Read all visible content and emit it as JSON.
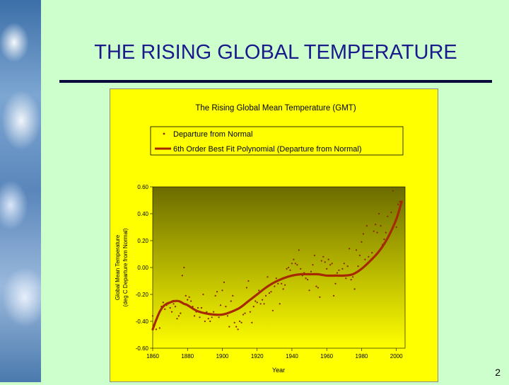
{
  "slide": {
    "title": "THE RISING GLOBAL TEMPERATURE",
    "page_number": "2",
    "colors": {
      "background": "#ccffcc",
      "title": "#1a1a8c",
      "chart_bg": "#ffff00"
    }
  },
  "chart_data": {
    "type": "scatter",
    "title": "The Rising Global Mean Temperature (GMT)",
    "xlabel": "Year",
    "ylabel": "Global Mean Temperature (deg C Departure from Normal)",
    "ylabel_lines": [
      "Global Mean Temperature",
      "(deg C Departure from Normal)"
    ],
    "xlim": [
      1860,
      2005
    ],
    "ylim": [
      -0.6,
      0.6
    ],
    "x_ticks": [
      1860,
      1880,
      1900,
      1920,
      1940,
      1960,
      1980,
      2000
    ],
    "x_tick_labels": [
      "1860",
      "1880",
      "1900",
      "1920",
      "1940",
      "1960",
      "1980",
      "2000"
    ],
    "y_ticks": [
      -0.6,
      -0.4,
      -0.2,
      0,
      0.2,
      0.4,
      0.6
    ],
    "y_tick_labels": [
      "-0.60",
      "-0.40",
      "-0.20",
      "0.00",
      "0.20",
      "0.40",
      "0.60"
    ],
    "grid": false,
    "legend_position": "top",
    "series": [
      {
        "name": "Departure from Normal",
        "kind": "scatter",
        "color": "#8b2500",
        "x": [
          1860,
          1861,
          1862,
          1863,
          1864,
          1865,
          1866,
          1867,
          1868,
          1869,
          1870,
          1871,
          1872,
          1873,
          1874,
          1875,
          1876,
          1877,
          1878,
          1879,
          1880,
          1881,
          1882,
          1883,
          1884,
          1885,
          1886,
          1887,
          1888,
          1889,
          1890,
          1891,
          1892,
          1893,
          1894,
          1895,
          1896,
          1897,
          1898,
          1899,
          1900,
          1901,
          1902,
          1903,
          1904,
          1905,
          1906,
          1907,
          1908,
          1909,
          1910,
          1911,
          1912,
          1913,
          1914,
          1915,
          1916,
          1917,
          1918,
          1919,
          1920,
          1921,
          1922,
          1923,
          1924,
          1925,
          1926,
          1927,
          1928,
          1929,
          1930,
          1931,
          1932,
          1933,
          1934,
          1935,
          1936,
          1937,
          1938,
          1939,
          1940,
          1941,
          1942,
          1943,
          1944,
          1945,
          1946,
          1947,
          1948,
          1949,
          1950,
          1951,
          1952,
          1953,
          1954,
          1955,
          1956,
          1957,
          1958,
          1959,
          1960,
          1961,
          1962,
          1963,
          1964,
          1965,
          1966,
          1967,
          1968,
          1969,
          1970,
          1971,
          1972,
          1973,
          1974,
          1975,
          1976,
          1977,
          1978,
          1979,
          1980,
          1981,
          1982,
          1983,
          1984,
          1985,
          1986,
          1987,
          1988,
          1989,
          1990,
          1991,
          1992,
          1993,
          1994,
          1995,
          1996,
          1997,
          1998,
          1999,
          2000,
          2001,
          2002,
          2003
        ],
        "y": [
          -0.36,
          -0.42,
          -0.46,
          -0.36,
          -0.45,
          -0.29,
          -0.26,
          -0.31,
          -0.28,
          -0.27,
          -0.3,
          -0.33,
          -0.27,
          -0.29,
          -0.38,
          -0.36,
          -0.34,
          -0.06,
          0.0,
          -0.21,
          -0.24,
          -0.22,
          -0.25,
          -0.29,
          -0.36,
          -0.33,
          -0.3,
          -0.37,
          -0.3,
          -0.2,
          -0.4,
          -0.33,
          -0.38,
          -0.4,
          -0.37,
          -0.33,
          -0.21,
          -0.18,
          -0.37,
          -0.28,
          -0.17,
          -0.11,
          -0.29,
          -0.36,
          -0.44,
          -0.25,
          -0.21,
          -0.41,
          -0.44,
          -0.46,
          -0.4,
          -0.41,
          -0.35,
          -0.34,
          -0.15,
          -0.1,
          -0.33,
          -0.41,
          -0.29,
          -0.25,
          -0.26,
          -0.17,
          -0.27,
          -0.24,
          -0.27,
          -0.21,
          -0.07,
          -0.19,
          -0.18,
          -0.32,
          -0.14,
          -0.08,
          -0.12,
          -0.27,
          -0.12,
          -0.16,
          -0.13,
          -0.01,
          0.0,
          -0.02,
          0.03,
          0.06,
          0.03,
          0.02,
          0.13,
          -0.01,
          -0.06,
          -0.04,
          -0.08,
          -0.09,
          -0.17,
          -0.03,
          0.02,
          0.09,
          -0.14,
          -0.15,
          -0.22,
          0.05,
          0.08,
          0.04,
          -0.01,
          0.06,
          0.02,
          0.03,
          -0.21,
          -0.12,
          -0.04,
          -0.02,
          -0.06,
          -0.01,
          0.03,
          -0.08,
          0.01,
          0.14,
          -0.09,
          -0.07,
          -0.16,
          0.13,
          0.01,
          0.09,
          0.19,
          0.25,
          0.06,
          0.31,
          0.08,
          0.05,
          0.11,
          0.27,
          0.32,
          0.26,
          0.4,
          0.31,
          0.17,
          0.21,
          0.26,
          0.38,
          0.24,
          0.41,
          0.57,
          0.33,
          0.3,
          0.47,
          0.49,
          0.48
        ]
      },
      {
        "name": "6th Order Best Fit Polynomial (Departure from Normal)",
        "kind": "line",
        "color": "#a52a00",
        "x": [
          1860,
          1862,
          1864,
          1866,
          1868,
          1870,
          1872,
          1875,
          1878,
          1880,
          1885,
          1890,
          1895,
          1900,
          1905,
          1910,
          1915,
          1920,
          1925,
          1930,
          1935,
          1940,
          1945,
          1950,
          1955,
          1960,
          1965,
          1970,
          1975,
          1980,
          1985,
          1990,
          1995,
          2000,
          2003
        ],
        "y": [
          -0.46,
          -0.39,
          -0.33,
          -0.29,
          -0.27,
          -0.26,
          -0.25,
          -0.25,
          -0.27,
          -0.28,
          -0.32,
          -0.34,
          -0.35,
          -0.35,
          -0.33,
          -0.3,
          -0.25,
          -0.2,
          -0.15,
          -0.11,
          -0.08,
          -0.06,
          -0.05,
          -0.05,
          -0.05,
          -0.06,
          -0.06,
          -0.06,
          -0.05,
          -0.01,
          0.05,
          0.12,
          0.22,
          0.36,
          0.49
        ]
      }
    ]
  }
}
